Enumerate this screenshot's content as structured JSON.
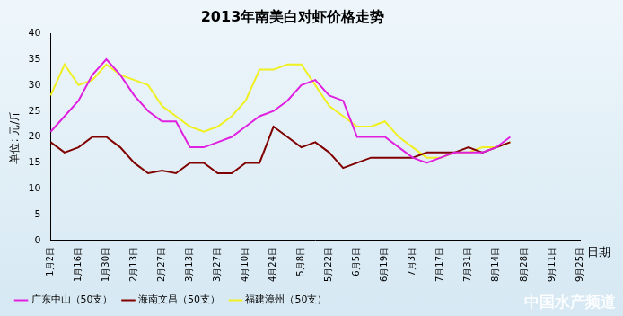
{
  "chart_data": {
    "type": "line",
    "title": "2013年南美白对虾价格走势",
    "y_label": "单位: 元/斤",
    "x_label": "日期",
    "annotations": [
      "中国水产频道"
    ],
    "categories": [
      "1月2日",
      null,
      "1月16日",
      null,
      "1月30日",
      null,
      "2月13日",
      null,
      "2月27日",
      null,
      "3月13日",
      null,
      "3月27日",
      null,
      "4月10日",
      null,
      "4月24日",
      null,
      "5月8日",
      null,
      "5月22日",
      null,
      "6月5日",
      null,
      "6月19日",
      null,
      "7月3日",
      null,
      "7月17日",
      null,
      "7月31日",
      null,
      "8月14日",
      null,
      "8月28日",
      null,
      "9月11日",
      null,
      "9月25日"
    ],
    "series": [
      {
        "name": "广东中山（50支）",
        "color": "#e020e0",
        "values": [
          21,
          24,
          27,
          32,
          35,
          32,
          28,
          25,
          23,
          23,
          18,
          18,
          19,
          20,
          22,
          24,
          25,
          27,
          30,
          31,
          28,
          27,
          20,
          20,
          20,
          18,
          16,
          15,
          16,
          17,
          17,
          17,
          18,
          20,
          null,
          null,
          null,
          null,
          null
        ]
      },
      {
        "name": "海南文昌（50支）",
        "color": "#800000",
        "values": [
          19,
          17,
          18,
          20,
          20,
          18,
          15,
          13,
          13.5,
          13,
          15,
          15,
          13,
          13,
          15,
          15,
          22,
          20,
          18,
          19,
          17,
          14,
          15,
          16,
          16,
          16,
          16,
          17,
          17,
          17,
          18,
          17,
          18,
          19,
          null,
          null,
          null,
          null,
          null
        ]
      },
      {
        "name": "福建漳州（50支）",
        "color": "#f0f020",
        "values": [
          28,
          34,
          30,
          31,
          34,
          32,
          31,
          30,
          26,
          24,
          22,
          21,
          22,
          24,
          27,
          33,
          33,
          34,
          34,
          30,
          26,
          24,
          22,
          22,
          23,
          20,
          18,
          16,
          16,
          17,
          17,
          18,
          18,
          19,
          null,
          null,
          null,
          null,
          null
        ]
      }
    ],
    "ylim": [
      0,
      40
    ],
    "yticks": [
      0,
      5,
      10,
      15,
      20,
      25,
      30,
      35,
      40
    ],
    "grid": false,
    "legend": "bottom",
    "marker": "none",
    "line_style": "solid"
  }
}
